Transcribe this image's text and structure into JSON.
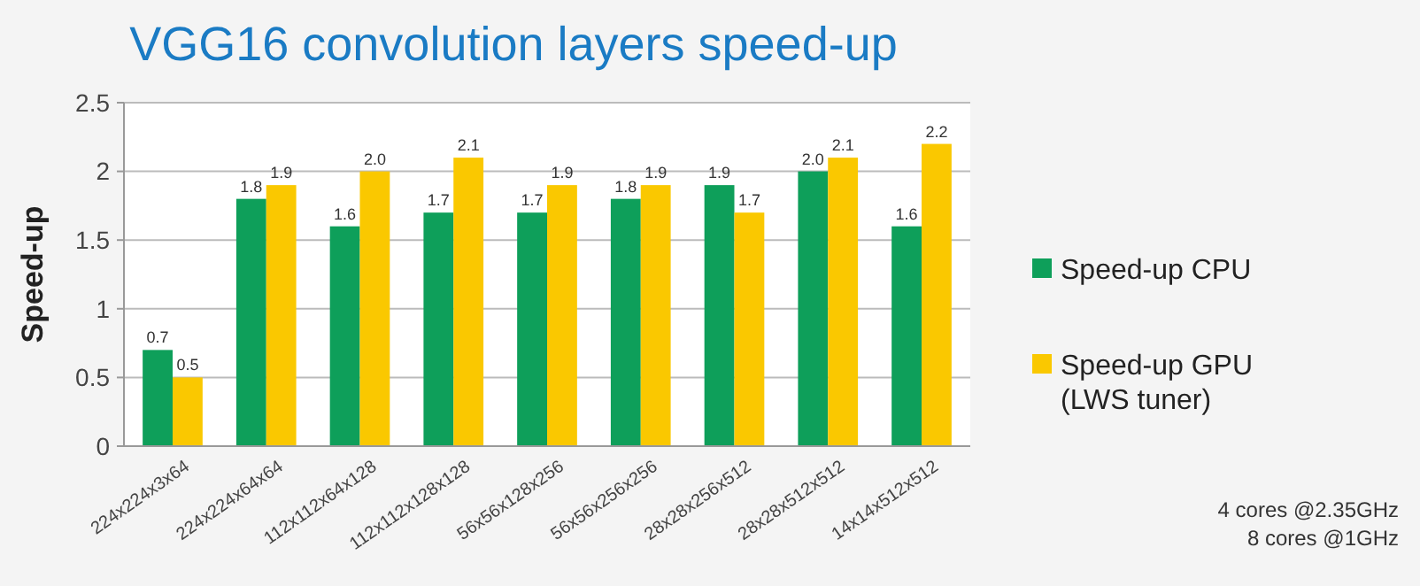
{
  "chart_data": {
    "type": "bar",
    "title": "VGG16 convolution layers speed-up",
    "ylabel": "Speed-up",
    "categories": [
      "224x224x3x64",
      "224x224x64x64",
      "112x112x64x128",
      "112x112x128x128",
      "56x56x128x256",
      "56x56x256x256",
      "28x28x256x512",
      "28x28x512x512",
      "14x14x512x512"
    ],
    "series": [
      {
        "name": "Speed-up CPU",
        "color": "#0e9f5a",
        "values": [
          0.7,
          1.8,
          1.6,
          1.7,
          1.7,
          1.8,
          1.9,
          2.0,
          1.6
        ],
        "value_labels": [
          "0.7",
          "1.8",
          "1.6",
          "1.7",
          "1.7",
          "1.8",
          "1.9",
          "2.0",
          "1.6"
        ]
      },
      {
        "name": "Speed-up GPU (LWS tuner)",
        "color": "#fac800",
        "values": [
          0.5,
          1.9,
          2.0,
          2.1,
          1.9,
          1.9,
          1.7,
          2.1,
          2.2
        ],
        "value_labels": [
          "0.5",
          "1.9",
          "2.0",
          "2.1",
          "1.9",
          "1.9",
          "1.7",
          "2.1",
          "2.2"
        ]
      }
    ],
    "ylim": [
      0,
      2.5
    ],
    "yticks": [
      0,
      0.5,
      1,
      1.5,
      2,
      2.5
    ],
    "grid": "y",
    "legend": "right",
    "annotations": [
      "4 cores @2.35GHz",
      "8 cores @1GHz"
    ]
  }
}
